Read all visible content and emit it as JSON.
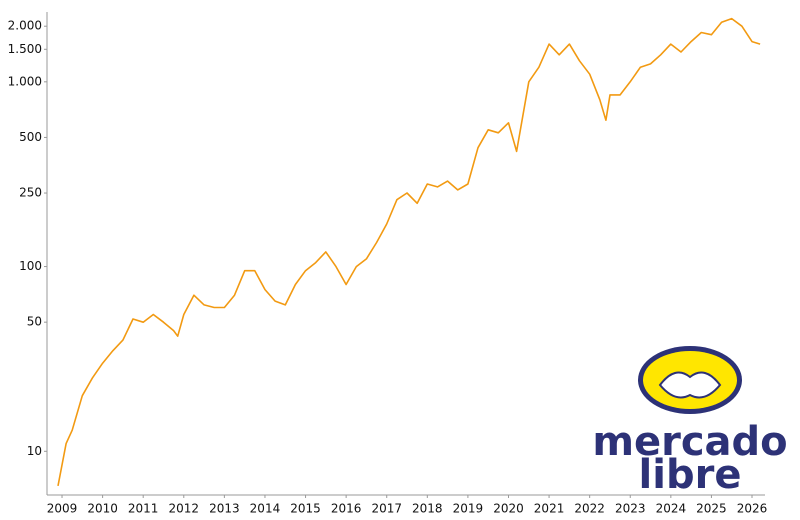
{
  "chart_data": {
    "type": "line",
    "log_scale": true,
    "x": [
      2008.9,
      2009.1,
      2009.25,
      2009.5,
      2009.75,
      2010.0,
      2010.25,
      2010.5,
      2010.75,
      2011.0,
      2011.25,
      2011.5,
      2011.75,
      2011.85,
      2012.0,
      2012.25,
      2012.5,
      2012.75,
      2013.0,
      2013.25,
      2013.5,
      2013.75,
      2014.0,
      2014.25,
      2014.5,
      2014.75,
      2015.0,
      2015.25,
      2015.5,
      2015.75,
      2016.0,
      2016.25,
      2016.5,
      2016.75,
      2017.0,
      2017.25,
      2017.5,
      2017.75,
      2018.0,
      2018.25,
      2018.5,
      2018.75,
      2019.0,
      2019.25,
      2019.5,
      2019.75,
      2020.0,
      2020.2,
      2020.5,
      2020.75,
      2021.0,
      2021.25,
      2021.5,
      2021.75,
      2022.0,
      2022.25,
      2022.4,
      2022.5,
      2022.75,
      2023.0,
      2023.25,
      2023.5,
      2023.75,
      2024.0,
      2024.25,
      2024.5,
      2024.75,
      2025.0,
      2025.25,
      2025.5,
      2025.75,
      2026.0,
      2026.2
    ],
    "series": [
      {
        "color": "#f29a12",
        "values": [
          6.5,
          11,
          13,
          20,
          25,
          30,
          35,
          40,
          52,
          50,
          55,
          50,
          45,
          42,
          55,
          70,
          62,
          60,
          60,
          70,
          95,
          95,
          75,
          65,
          62,
          80,
          95,
          105,
          120,
          100,
          80,
          100,
          110,
          135,
          170,
          230,
          250,
          220,
          280,
          270,
          290,
          260,
          280,
          440,
          550,
          530,
          600,
          420,
          1000,
          1200,
          1600,
          1400,
          1600,
          1300,
          1100,
          800,
          620,
          850,
          850,
          1000,
          1200,
          1250,
          1400,
          1600,
          1450,
          1650,
          1850,
          1800,
          2100,
          2200,
          2000,
          1650,
          1600
        ]
      }
    ],
    "xlim": [
      2008.63,
      2026.32
    ],
    "xticks": [
      2009,
      2010,
      2011,
      2012,
      2013,
      2014,
      2015,
      2016,
      2017,
      2018,
      2019,
      2020,
      2021,
      2022,
      2023,
      2024,
      2025,
      2026
    ],
    "ylim": [
      5.8,
      2300
    ],
    "yticks": [
      10,
      50,
      100,
      250,
      500,
      {
        "value": 1000,
        "label": "1.000"
      },
      {
        "value": 1500,
        "label": "1.500"
      },
      {
        "value": 2000,
        "label": "2.000"
      }
    ]
  },
  "logo": {
    "lines": [
      "mercado",
      "libre"
    ]
  }
}
